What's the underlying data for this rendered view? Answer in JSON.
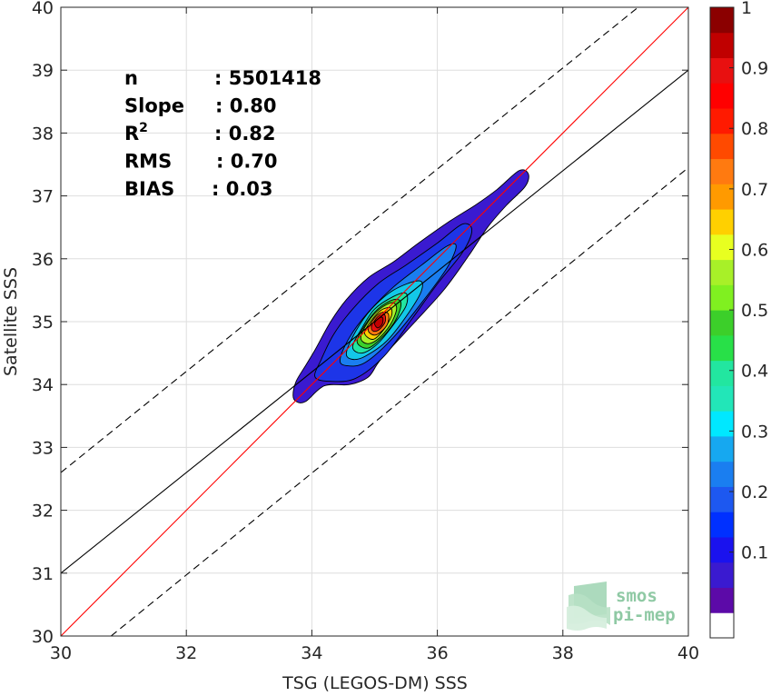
{
  "chart_data": {
    "type": "heatmap",
    "subtype": "density-contour-scatter",
    "xlabel": "TSG (LEGOS-DM) SSS",
    "ylabel": "Satellite SSS",
    "xlim": [
      30,
      40
    ],
    "ylim": [
      30,
      40
    ],
    "xticks": [
      30,
      32,
      34,
      36,
      38,
      40
    ],
    "yticks": [
      30,
      31,
      32,
      33,
      34,
      35,
      36,
      37,
      38,
      39,
      40
    ],
    "grid": true,
    "stats": [
      {
        "label": "n",
        "value": ": 5501418"
      },
      {
        "label": "Slope",
        "value": ": 0.80"
      },
      {
        "label": "R",
        "sup": "2",
        "value": ": 0.82"
      },
      {
        "label": "RMS",
        "value": ": 0.70"
      },
      {
        "label": "BIAS",
        "value": ": 0.03"
      }
    ],
    "lines": [
      {
        "kind": "identity",
        "color": "#ff0000",
        "style": "solid",
        "points": [
          [
            30,
            30
          ],
          [
            40,
            40
          ]
        ]
      },
      {
        "kind": "regression",
        "color": "#000000",
        "style": "solid",
        "points": [
          [
            30,
            31.0
          ],
          [
            40,
            39.0
          ]
        ]
      },
      {
        "kind": "upper-bound",
        "color": "#000000",
        "style": "dashed",
        "points": [
          [
            30,
            32.6
          ],
          [
            39.2,
            40
          ]
        ]
      },
      {
        "kind": "lower-bound",
        "color": "#000000",
        "style": "dashed",
        "points": [
          [
            30.8,
            30
          ],
          [
            40,
            37.45
          ]
        ]
      }
    ],
    "density": {
      "center": [
        35.05,
        35.1
      ],
      "levels": [
        {
          "level": 0.05,
          "color": "#3a1ad0",
          "polygon": [
            [
              33.7,
              33.83
            ],
            [
              33.75,
              34.05
            ],
            [
              33.9,
              34.3
            ],
            [
              34.05,
              34.55
            ],
            [
              34.3,
              35.0
            ],
            [
              34.55,
              35.35
            ],
            [
              34.9,
              35.7
            ],
            [
              35.3,
              35.95
            ],
            [
              35.7,
              36.25
            ],
            [
              36.2,
              36.6
            ],
            [
              36.6,
              36.85
            ],
            [
              36.95,
              37.1
            ],
            [
              37.3,
              37.4
            ],
            [
              37.45,
              37.35
            ],
            [
              37.4,
              37.15
            ],
            [
              37.1,
              36.85
            ],
            [
              36.8,
              36.5
            ],
            [
              36.5,
              36.05
            ],
            [
              36.1,
              35.5
            ],
            [
              35.6,
              34.95
            ],
            [
              35.1,
              34.4
            ],
            [
              34.9,
              34.12
            ],
            [
              34.6,
              34.0
            ],
            [
              34.2,
              33.98
            ],
            [
              33.9,
              33.73
            ],
            [
              33.75,
              33.73
            ]
          ]
        },
        {
          "level": 0.1,
          "color": "#1d35e8",
          "polygon": [
            [
              34.05,
              34.12
            ],
            [
              34.15,
              34.4
            ],
            [
              34.35,
              34.8
            ],
            [
              34.65,
              35.2
            ],
            [
              35.05,
              35.6
            ],
            [
              35.5,
              35.9
            ],
            [
              36.0,
              36.25
            ],
            [
              36.4,
              36.55
            ],
            [
              36.55,
              36.45
            ],
            [
              36.4,
              36.1
            ],
            [
              36.0,
              35.6
            ],
            [
              35.6,
              35.05
            ],
            [
              35.15,
              34.45
            ],
            [
              34.7,
              34.1
            ],
            [
              34.3,
              34.05
            ]
          ]
        },
        {
          "level": 0.2,
          "color": "#1a7ef0",
          "polygon": [
            [
              34.45,
              34.4
            ],
            [
              34.6,
              34.75
            ],
            [
              34.9,
              35.15
            ],
            [
              35.3,
              35.55
            ],
            [
              35.75,
              35.9
            ],
            [
              36.15,
              36.2
            ],
            [
              36.3,
              36.2
            ],
            [
              36.15,
              35.85
            ],
            [
              35.75,
              35.3
            ],
            [
              35.3,
              34.75
            ],
            [
              34.85,
              34.35
            ],
            [
              34.55,
              34.3
            ]
          ]
        },
        {
          "level": 0.3,
          "color": "#13c8e8",
          "polygon": [
            [
              34.55,
              34.5
            ],
            [
              34.7,
              34.85
            ],
            [
              34.95,
              35.2
            ],
            [
              35.3,
              35.5
            ],
            [
              35.7,
              35.65
            ],
            [
              35.75,
              35.5
            ],
            [
              35.55,
              35.15
            ],
            [
              35.2,
              34.7
            ],
            [
              34.85,
              34.45
            ],
            [
              34.65,
              34.4
            ]
          ]
        },
        {
          "level": 0.4,
          "color": "#22e6a0",
          "polygon": [
            [
              34.65,
              34.6
            ],
            [
              34.8,
              34.9
            ],
            [
              35.0,
              35.2
            ],
            [
              35.3,
              35.4
            ],
            [
              35.5,
              35.45
            ],
            [
              35.5,
              35.25
            ],
            [
              35.3,
              34.95
            ],
            [
              35.05,
              34.65
            ],
            [
              34.8,
              34.5
            ]
          ]
        },
        {
          "level": 0.5,
          "color": "#3ccf2a",
          "polygon": [
            [
              34.72,
              34.68
            ],
            [
              34.85,
              34.95
            ],
            [
              35.05,
              35.2
            ],
            [
              35.3,
              35.35
            ],
            [
              35.42,
              35.3
            ],
            [
              35.35,
              35.05
            ],
            [
              35.15,
              34.78
            ],
            [
              34.9,
              34.58
            ]
          ]
        },
        {
          "level": 0.6,
          "color": "#a8f028",
          "polygon": [
            [
              34.78,
              34.75
            ],
            [
              34.9,
              35.0
            ],
            [
              35.08,
              35.2
            ],
            [
              35.28,
              35.3
            ],
            [
              35.35,
              35.2
            ],
            [
              35.25,
              34.95
            ],
            [
              35.05,
              34.72
            ],
            [
              34.88,
              34.65
            ]
          ]
        },
        {
          "level": 0.7,
          "color": "#ffd000",
          "polygon": [
            [
              34.84,
              34.82
            ],
            [
              34.95,
              35.02
            ],
            [
              35.1,
              35.18
            ],
            [
              35.25,
              35.22
            ],
            [
              35.27,
              35.1
            ],
            [
              35.15,
              34.88
            ],
            [
              34.98,
              34.72
            ]
          ]
        },
        {
          "level": 0.8,
          "color": "#ff7a10",
          "polygon": [
            [
              34.9,
              34.88
            ],
            [
              35.0,
              35.06
            ],
            [
              35.13,
              35.15
            ],
            [
              35.22,
              35.12
            ],
            [
              35.2,
              34.95
            ],
            [
              35.05,
              34.8
            ],
            [
              34.95,
              34.8
            ]
          ]
        },
        {
          "level": 0.9,
          "color": "#e81010",
          "polygon": [
            [
              34.95,
              34.92
            ],
            [
              35.04,
              35.07
            ],
            [
              35.15,
              35.12
            ],
            [
              35.17,
              35.0
            ],
            [
              35.07,
              34.87
            ],
            [
              34.98,
              34.85
            ]
          ]
        },
        {
          "level": 1.0,
          "color": "#c00000",
          "polygon": [
            [
              35.0,
              34.97
            ],
            [
              35.07,
              35.06
            ],
            [
              35.13,
              35.06
            ],
            [
              35.12,
              34.96
            ],
            [
              35.05,
              34.9
            ]
          ]
        }
      ]
    },
    "colorbar": {
      "ticks": [
        {
          "value": 0.1,
          "label": "0.1"
        },
        {
          "value": 0.2,
          "label": "0.2"
        },
        {
          "value": 0.3,
          "label": "0.3"
        },
        {
          "value": 0.4,
          "label": "0.4"
        },
        {
          "value": 0.5,
          "label": "0.5"
        },
        {
          "value": 0.6,
          "label": "0.6"
        },
        {
          "value": 0.7,
          "label": "0.7"
        },
        {
          "value": 0.8,
          "label": "0.8"
        },
        {
          "value": 0.9,
          "label": "0.9"
        },
        {
          "value": 1.0,
          "label": "1"
        }
      ],
      "colors": [
        "#ffffff",
        "#5c0aa8",
        "#3a1ad0",
        "#1a12ee",
        "#0030ff",
        "#1d58f0",
        "#1a7ef0",
        "#16a8f0",
        "#00e8ff",
        "#22e6b8",
        "#22e6a0",
        "#28e048",
        "#3ccf2a",
        "#80f020",
        "#a8f028",
        "#e8ff20",
        "#ffd000",
        "#ff9a00",
        "#ff7a10",
        "#ff4a00",
        "#ff1a00",
        "#ff0000",
        "#e81010",
        "#c00000",
        "#8b0000"
      ]
    },
    "logo": {
      "line1": "smos",
      "line2": "pi-mep"
    }
  }
}
